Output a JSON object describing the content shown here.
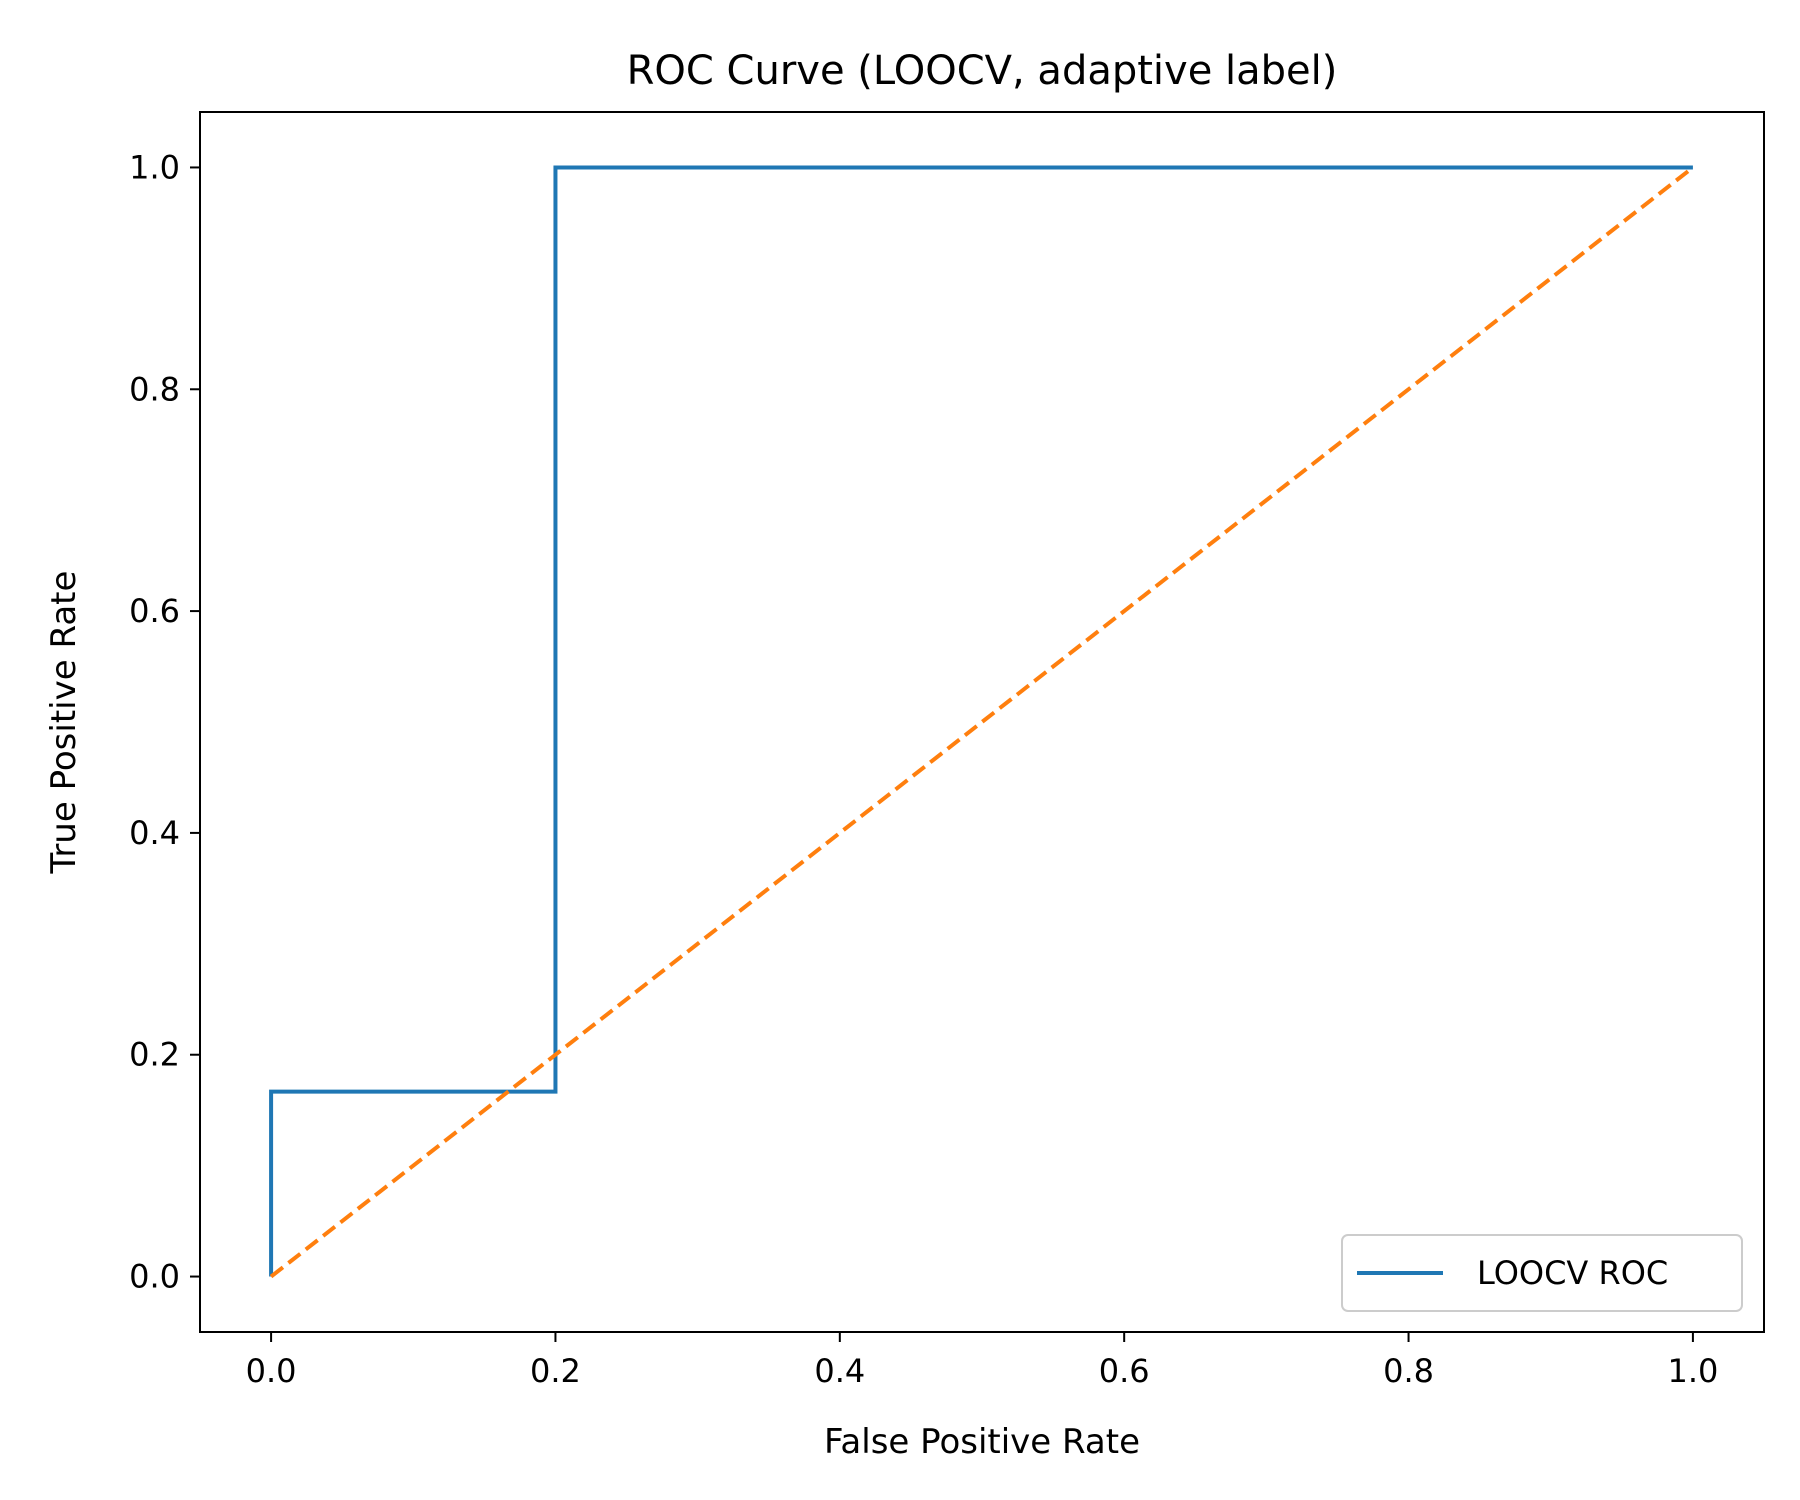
{
  "chart_data": {
    "type": "line",
    "title": "ROC Curve (LOOCV, adaptive label)",
    "xlabel": "False Positive Rate",
    "ylabel": "True Positive Rate",
    "xlim": [
      -0.05,
      1.05
    ],
    "ylim": [
      -0.05,
      1.05
    ],
    "xticks": [
      "0.0",
      "0.2",
      "0.4",
      "0.6",
      "0.8",
      "1.0"
    ],
    "yticks": [
      "0.0",
      "0.2",
      "0.4",
      "0.6",
      "0.8",
      "1.0"
    ],
    "grid": false,
    "legend_position": "lower-right",
    "series": [
      {
        "name": "LOOCV ROC",
        "color": "#1f77b4",
        "style": "solid",
        "x": [
          0.0,
          0.0,
          0.2,
          0.2,
          1.0
        ],
        "y": [
          0.0,
          0.1667,
          0.1667,
          1.0,
          1.0
        ]
      },
      {
        "color": "#ff7f0e",
        "style": "dashed",
        "x": [
          0.0,
          1.0
        ],
        "y": [
          0.0,
          1.0
        ]
      }
    ]
  }
}
